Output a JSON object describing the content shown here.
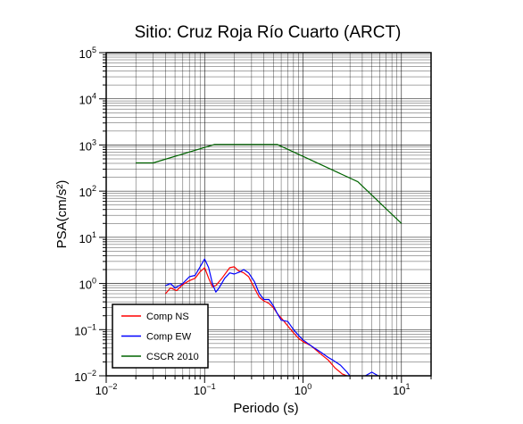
{
  "chart_data": {
    "type": "line",
    "title": "Sitio: Cruz Roja Río Cuarto (ARCT)",
    "xlabel": "Periodo (s)",
    "ylabel": "PSA(cm/s²)",
    "x_scale": "log",
    "y_scale": "log",
    "xlim": [
      0.01,
      20
    ],
    "ylim": [
      0.01,
      100000
    ],
    "grid": true,
    "legend_position": "bottom-left",
    "x_ticks": [
      {
        "base": "10",
        "exp": "−2"
      },
      {
        "base": "10",
        "exp": "−1"
      },
      {
        "base": "10",
        "exp": "0"
      },
      {
        "base": "10",
        "exp": "1"
      }
    ],
    "y_ticks": [
      {
        "base": "10",
        "exp": "−2"
      },
      {
        "base": "10",
        "exp": "−1"
      },
      {
        "base": "10",
        "exp": "0"
      },
      {
        "base": "10",
        "exp": "1"
      },
      {
        "base": "10",
        "exp": "2"
      },
      {
        "base": "10",
        "exp": "3"
      },
      {
        "base": "10",
        "exp": "4"
      },
      {
        "base": "10",
        "exp": "5"
      }
    ],
    "series": [
      {
        "name": "Comp NS",
        "color": "#ff0000",
        "points": [
          [
            0.04,
            0.6
          ],
          [
            0.045,
            0.8
          ],
          [
            0.052,
            0.7
          ],
          [
            0.06,
            0.95
          ],
          [
            0.07,
            1.15
          ],
          [
            0.08,
            1.3
          ],
          [
            0.09,
            1.8
          ],
          [
            0.1,
            2.2
          ],
          [
            0.11,
            1.3
          ],
          [
            0.12,
            0.85
          ],
          [
            0.13,
            0.9
          ],
          [
            0.15,
            1.3
          ],
          [
            0.18,
            2.2
          ],
          [
            0.2,
            2.3
          ],
          [
            0.22,
            1.9
          ],
          [
            0.25,
            1.7
          ],
          [
            0.28,
            1.4
          ],
          [
            0.32,
            0.8
          ],
          [
            0.36,
            0.5
          ],
          [
            0.4,
            0.42
          ],
          [
            0.45,
            0.37
          ],
          [
            0.5,
            0.3
          ],
          [
            0.55,
            0.22
          ],
          [
            0.6,
            0.18
          ],
          [
            0.7,
            0.12
          ],
          [
            0.8,
            0.085
          ],
          [
            0.9,
            0.065
          ],
          [
            1.0,
            0.055
          ],
          [
            1.2,
            0.045
          ],
          [
            1.5,
            0.03
          ],
          [
            1.8,
            0.022
          ],
          [
            2.1,
            0.015
          ],
          [
            2.5,
            0.011
          ],
          [
            2.8,
            0.01
          ]
        ]
      },
      {
        "name": "Comp EW",
        "color": "#0000ff",
        "points": [
          [
            0.04,
            0.9
          ],
          [
            0.045,
            1.0
          ],
          [
            0.05,
            0.8
          ],
          [
            0.06,
            1.0
          ],
          [
            0.07,
            1.4
          ],
          [
            0.08,
            1.5
          ],
          [
            0.09,
            2.3
          ],
          [
            0.1,
            3.4
          ],
          [
            0.11,
            2.2
          ],
          [
            0.12,
            1.0
          ],
          [
            0.13,
            0.65
          ],
          [
            0.14,
            0.8
          ],
          [
            0.16,
            1.3
          ],
          [
            0.18,
            1.7
          ],
          [
            0.2,
            1.6
          ],
          [
            0.23,
            1.8
          ],
          [
            0.25,
            2.0
          ],
          [
            0.28,
            1.7
          ],
          [
            0.32,
            1.1
          ],
          [
            0.36,
            0.6
          ],
          [
            0.4,
            0.45
          ],
          [
            0.45,
            0.45
          ],
          [
            0.5,
            0.33
          ],
          [
            0.55,
            0.22
          ],
          [
            0.6,
            0.16
          ],
          [
            0.7,
            0.15
          ],
          [
            0.8,
            0.1
          ],
          [
            0.9,
            0.075
          ],
          [
            1.0,
            0.06
          ],
          [
            1.2,
            0.045
          ],
          [
            1.5,
            0.033
          ],
          [
            1.8,
            0.025
          ],
          [
            2.0,
            0.022
          ],
          [
            2.4,
            0.017
          ],
          [
            2.8,
            0.012
          ],
          [
            3.0,
            0.01
          ]
        ]
      },
      {
        "name": "CSCR 2010",
        "color": "#006400",
        "points": [
          [
            0.02,
            410
          ],
          [
            0.03,
            410
          ],
          [
            0.125,
            1025
          ],
          [
            0.55,
            1025
          ],
          [
            3.6,
            160
          ],
          [
            10,
            20
          ]
        ]
      }
    ],
    "extra_segments": [
      {
        "color": "#0000ff",
        "points": [
          [
            4.3,
            0.01
          ],
          [
            5.0,
            0.012
          ],
          [
            5.8,
            0.01
          ]
        ]
      }
    ]
  }
}
